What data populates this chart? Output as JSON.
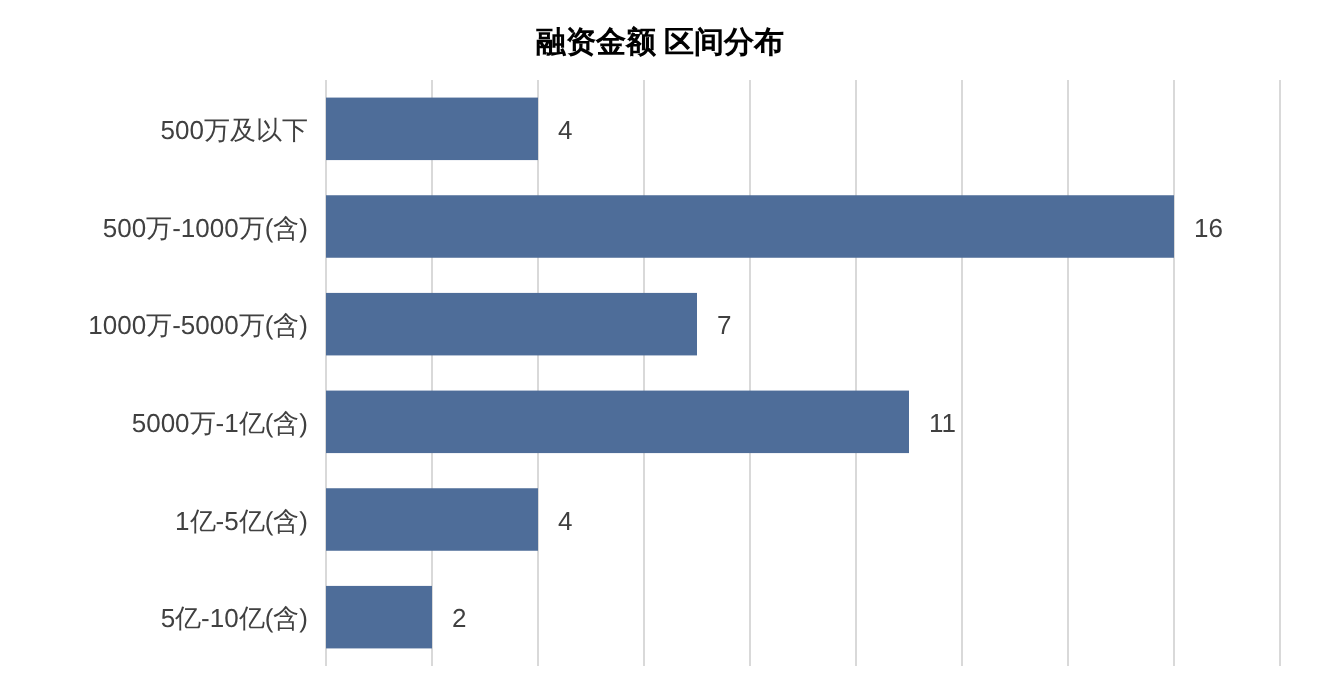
{
  "chart_data": {
    "type": "bar",
    "orientation": "horizontal",
    "title": "融资金额 区间分布",
    "categories": [
      "500万及以下",
      "500万-1000万(含)",
      "1000万-5000万(含)",
      "5000万-1亿(含)",
      "1亿-5亿(含)",
      "5亿-10亿(含)"
    ],
    "values": [
      4,
      16,
      7,
      11,
      4,
      2
    ],
    "color": "#4e6d99",
    "data_labels": true,
    "grid": "x",
    "tick_labels": "y",
    "xlim": [
      0,
      18
    ],
    "xticks": [
      {
        "value": 0,
        "label": null
      },
      {
        "value": 2,
        "label": null
      },
      {
        "value": 4,
        "label": null
      },
      {
        "value": 6,
        "label": null
      },
      {
        "value": 8,
        "label": null
      },
      {
        "value": 10,
        "label": null
      },
      {
        "value": 12,
        "label": null
      },
      {
        "value": 14,
        "label": null
      },
      {
        "value": 16,
        "label": null
      },
      {
        "value": 18,
        "label": null
      }
    ]
  }
}
